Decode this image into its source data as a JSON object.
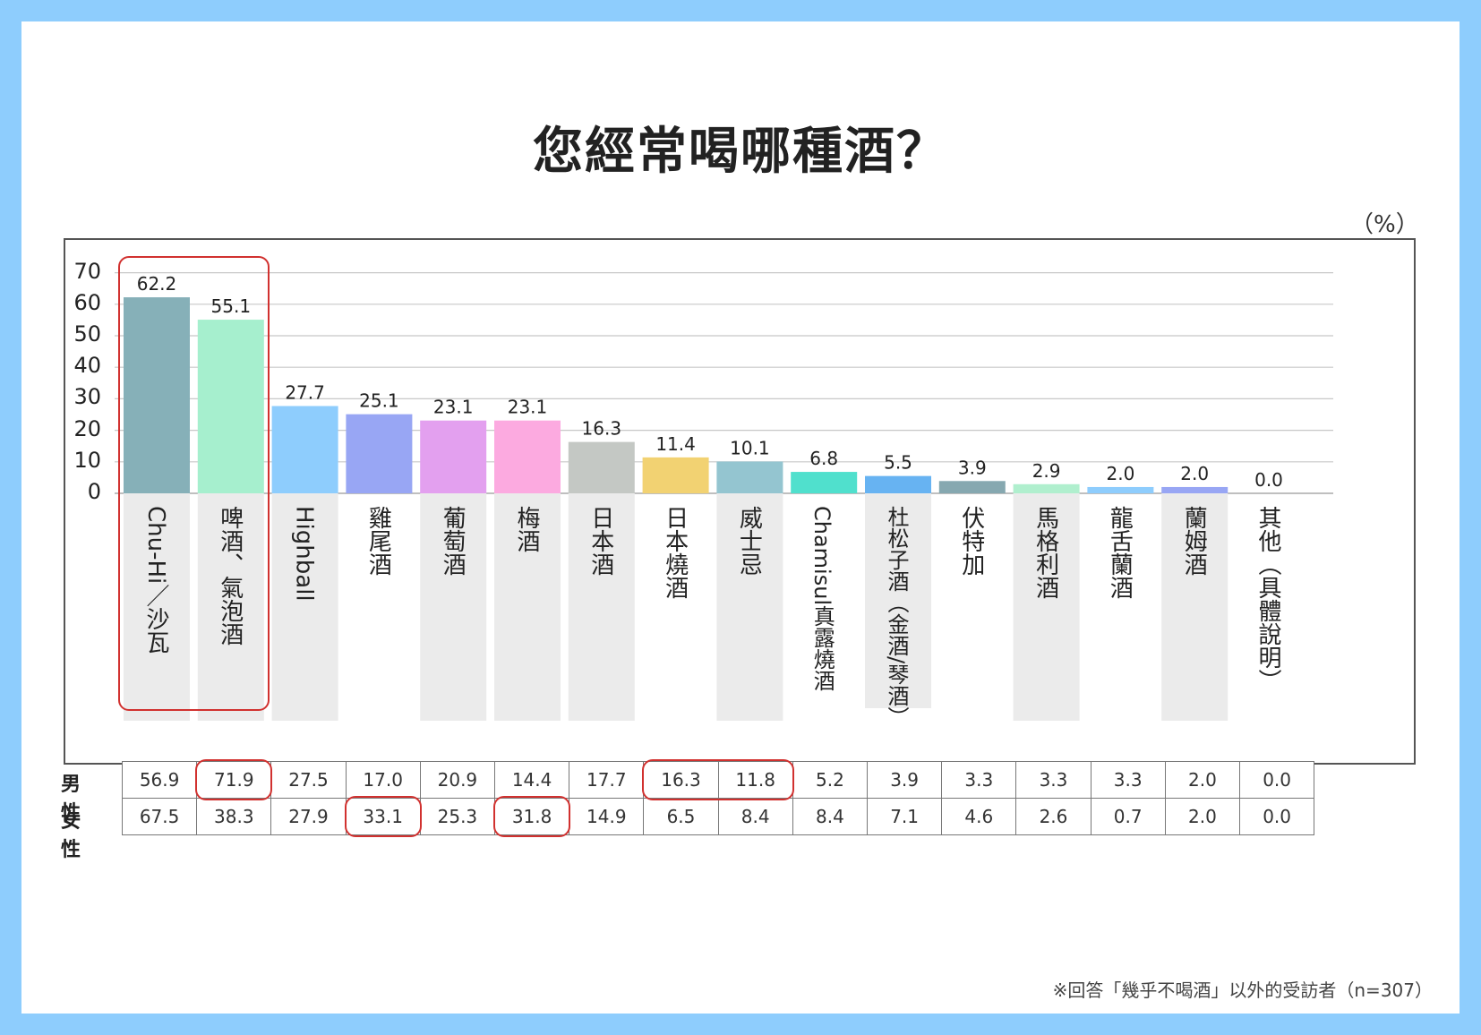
{
  "title": "您經常喝哪種酒？",
  "unit_label": "（%）",
  "note": "※回答「幾乎不喝酒」以外的受訪者（n=307）",
  "colors": {
    "frame_bg": "#8ecdfd",
    "highlight": "#d1312f"
  },
  "chart_data": {
    "type": "bar",
    "title": "您經常喝哪種酒？",
    "ylim": [
      0,
      70
    ],
    "yticks": [
      "0",
      "10",
      "20",
      "30",
      "40",
      "50",
      "60",
      "70"
    ],
    "grid": true,
    "categories": [
      "Chu-Hi／沙瓦",
      "啤酒、氣泡酒",
      "Highball",
      "雞尾酒",
      "葡萄酒",
      "梅酒",
      "日本酒",
      "日本燒酒",
      "威士忌",
      "Chamisul真露燒酒",
      "杜松子酒（金酒/琴酒）",
      "伏特加",
      "馬格利酒",
      "龍舌蘭酒",
      "蘭姆酒",
      "其他（具體說明）"
    ],
    "values": [
      62.2,
      55.1,
      27.7,
      25.1,
      23.1,
      23.1,
      16.3,
      11.4,
      10.1,
      6.8,
      5.5,
      3.9,
      2.9,
      2.0,
      2.0,
      0.0
    ],
    "value_labels": [
      "62.2",
      "55.1",
      "27.7",
      "25.1",
      "23.1",
      "23.1",
      "16.3",
      "11.4",
      "10.1",
      "6.8",
      "5.5",
      "3.9",
      "2.9",
      "2.0",
      "2.0",
      "0.0"
    ],
    "bar_colors": [
      "#86b0b8",
      "#a6efce",
      "#8ecdfd",
      "#98a6f4",
      "#e3a0ef",
      "#fcaae0",
      "#c4c8c4",
      "#f2d272",
      "#94c5d0",
      "#50e0cd",
      "#67b3f2",
      "#86a8b0",
      "#b0efce",
      "#8ecdfd",
      "#98a6f4",
      "#e3a0ef"
    ],
    "highlighted_categories": [
      0,
      1
    ]
  },
  "table": {
    "rows": [
      {
        "label": "男性",
        "values": [
          "56.9",
          "71.9",
          "27.5",
          "17.0",
          "20.9",
          "14.4",
          "17.7",
          "16.3",
          "11.8",
          "5.2",
          "3.9",
          "3.3",
          "3.3",
          "3.3",
          "2.0",
          "0.0"
        ]
      },
      {
        "label": "女性",
        "values": [
          "67.5",
          "38.3",
          "27.9",
          "33.1",
          "25.3",
          "31.8",
          "14.9",
          "6.5",
          "8.4",
          "8.4",
          "7.1",
          "4.6",
          "2.6",
          "0.7",
          "2.0",
          "0.0"
        ]
      }
    ],
    "highlighted_cells": [
      [
        0,
        1
      ],
      [
        0,
        7
      ],
      [
        0,
        8
      ],
      [
        1,
        3
      ],
      [
        1,
        5
      ]
    ]
  }
}
